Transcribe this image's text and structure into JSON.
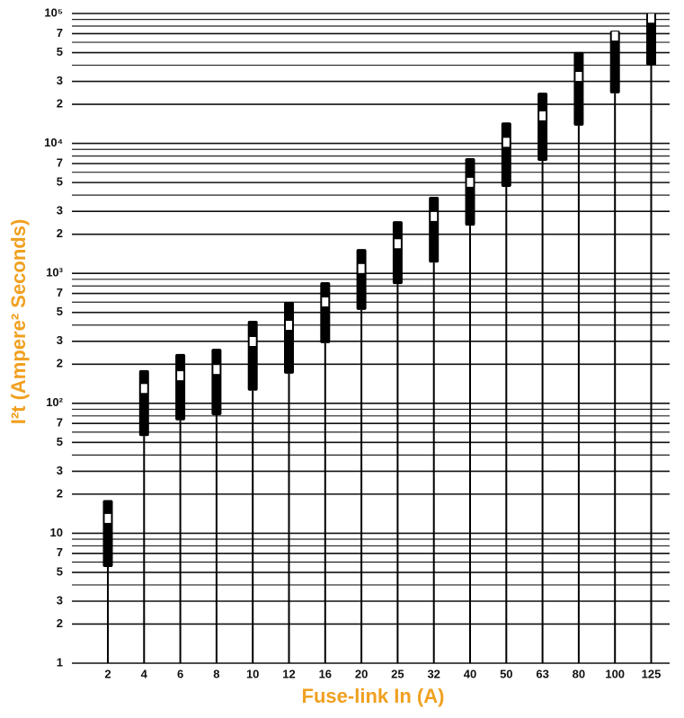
{
  "chart_data": {
    "type": "range",
    "x_label": "Fuse-link In (A)",
    "y_label": "I²t (Ampere² Seconds)",
    "categories": [
      "2",
      "4",
      "6",
      "8",
      "10",
      "12",
      "16",
      "20",
      "25",
      "32",
      "40",
      "50",
      "63",
      "80",
      "100",
      "125"
    ],
    "lows": [
      5.5,
      56,
      74,
      81,
      125,
      169,
      290,
      523,
      827,
      1210,
      2330,
      4630,
      7340,
      13700,
      24300,
      39800
    ],
    "highs": [
      18,
      180,
      240,
      263,
      431,
      603,
      855,
      1540,
      2520,
      3880,
      7700,
      14500,
      24600,
      50500,
      73700,
      100000
    ],
    "marks": [
      13,
      130,
      163,
      182,
      299,
      398,
      603,
      1090,
      1690,
      2740,
      5020,
      10200,
      16300,
      32800,
      67000,
      92000
    ],
    "color": "#000000",
    "log_y": true,
    "ylim": [
      1,
      100000
    ],
    "yticks": [
      1,
      2,
      3,
      5,
      7,
      10,
      {
        "value": 20,
        "label": "2"
      },
      {
        "value": 30,
        "label": "3"
      },
      {
        "value": 50,
        "label": "5"
      },
      {
        "value": 70,
        "label": "7"
      },
      {
        "value": 100,
        "label": "10²"
      },
      {
        "value": 200,
        "label": "2"
      },
      {
        "value": 300,
        "label": "3"
      },
      {
        "value": 500,
        "label": "5"
      },
      {
        "value": 700,
        "label": "7"
      },
      {
        "value": 1000,
        "label": "10³"
      },
      {
        "value": 2000,
        "label": "2"
      },
      {
        "value": 3000,
        "label": "3"
      },
      {
        "value": 5000,
        "label": "5"
      },
      {
        "value": 7000,
        "label": "7"
      },
      {
        "value": 10000,
        "label": "10⁴"
      },
      {
        "value": 20000,
        "label": "2"
      },
      {
        "value": 30000,
        "label": "3"
      },
      {
        "value": 50000,
        "label": "5"
      },
      {
        "value": 70000,
        "label": "7"
      },
      {
        "value": 100000,
        "label": "10⁵"
      }
    ],
    "yminor": [
      4,
      6,
      8,
      9,
      40,
      60,
      80,
      90,
      400,
      600,
      800,
      900,
      4000,
      6000,
      8000,
      9000,
      40000,
      60000,
      80000,
      90000
    ],
    "grid": true
  }
}
